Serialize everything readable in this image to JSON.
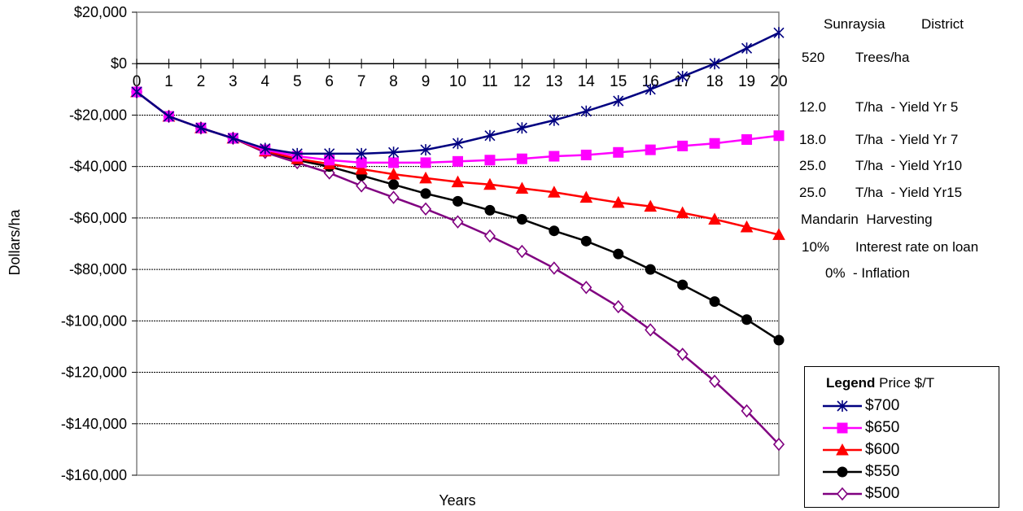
{
  "chart_data": {
    "type": "line",
    "xlabel": "Years",
    "ylabel": "Dollars/ha",
    "x": [
      0,
      1,
      2,
      3,
      4,
      5,
      6,
      7,
      8,
      9,
      10,
      11,
      12,
      13,
      14,
      15,
      16,
      17,
      18,
      19,
      20
    ],
    "x_tick_labels": [
      "0",
      "1",
      "2",
      "3",
      "4",
      "5",
      "6",
      "7",
      "8",
      "9",
      "10",
      "11",
      "12",
      "13",
      "14",
      "15",
      "16",
      "17",
      "18",
      "19",
      "20"
    ],
    "ylim": [
      -160000,
      20000
    ],
    "y_ticks": [
      20000,
      0,
      -20000,
      -40000,
      -60000,
      -80000,
      -100000,
      -120000,
      -140000,
      -160000
    ],
    "y_tick_labels": [
      "$20,000",
      "$0",
      "-$20,000",
      "-$40,000",
      "-$60,000",
      "-$80,000",
      "-$100,000",
      "-$120,000",
      "-$140,000",
      "-$160,000"
    ],
    "grid": "horizontal",
    "legend_position": "bottom-right",
    "series": [
      {
        "name": "$700",
        "color": "#000080",
        "marker": "star",
        "values": [
          -11000,
          -20500,
          -25000,
          -29000,
          -33000,
          -35000,
          -35000,
          -35000,
          -34500,
          -33500,
          -31000,
          -28000,
          -25000,
          -22000,
          -18500,
          -14500,
          -10000,
          -5000,
          0,
          6000,
          12000
        ]
      },
      {
        "name": "$650",
        "color": "#ff00ff",
        "marker": "square",
        "values": [
          -11000,
          -20500,
          -25000,
          -29000,
          -33500,
          -36000,
          -37500,
          -38500,
          -38500,
          -38500,
          -38000,
          -37500,
          -37000,
          -36000,
          -35500,
          -34500,
          -33500,
          -32000,
          -31000,
          -29500,
          -28000
        ]
      },
      {
        "name": "$600",
        "color": "#ff0000",
        "marker": "triangle",
        "values": [
          -11000,
          -20500,
          -25000,
          -29000,
          -34000,
          -37000,
          -39000,
          -41000,
          -43000,
          -44500,
          -46000,
          -47000,
          -48500,
          -50000,
          -52000,
          -54000,
          -55500,
          -58000,
          -60500,
          -63500,
          -66500
        ]
      },
      {
        "name": "$550",
        "color": "#000000",
        "marker": "circle",
        "values": [
          -11000,
          -20500,
          -25000,
          -29000,
          -34000,
          -37500,
          -40000,
          -43500,
          -47000,
          -50500,
          -53500,
          -57000,
          -60500,
          -65000,
          -69000,
          -74000,
          -80000,
          -86000,
          -92500,
          -99500,
          -107500
        ]
      },
      {
        "name": "$500",
        "color": "#800080",
        "marker": "diamond",
        "values": [
          -11000,
          -20500,
          -25000,
          -29000,
          -34500,
          -38500,
          -42500,
          -47500,
          -52000,
          -56500,
          -61500,
          -67000,
          -73000,
          -79500,
          -87000,
          -94500,
          -103500,
          -113000,
          -123500,
          -135000,
          -148000
        ]
      }
    ]
  },
  "side_notes": {
    "region": "Sunraysia",
    "region_suffix": "District",
    "trees_value": "520",
    "trees_label": "Trees/ha",
    "yields": [
      {
        "value": "12.0",
        "label": "T/ha  - Yield Yr 5"
      },
      {
        "value": "18.0",
        "label": "T/ha  - Yield Yr 7"
      },
      {
        "value": "25.0",
        "label": "T/ha  - Yield Yr10"
      },
      {
        "value": "25.0",
        "label": "T/ha  - Yield Yr15"
      }
    ],
    "crop": "Mandarin  Harvesting",
    "interest_value": "10%",
    "interest_label": "Interest rate on loan",
    "inflation": "0%  - Inflation"
  },
  "legend": {
    "title_bold": "Legend",
    "title_rest": " Price $/T"
  }
}
